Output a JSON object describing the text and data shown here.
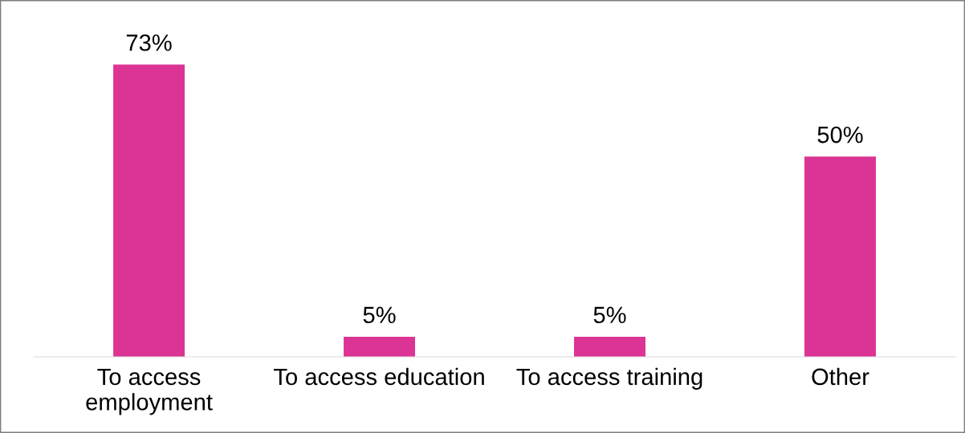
{
  "chart_data": {
    "type": "bar",
    "categories": [
      "To access\nemployment",
      "To access education",
      "To access training",
      "Other"
    ],
    "values": [
      73,
      5,
      5,
      50
    ],
    "value_labels": [
      "73%",
      "5%",
      "5%",
      "50%"
    ],
    "color": "#db3494",
    "legend": false
  }
}
